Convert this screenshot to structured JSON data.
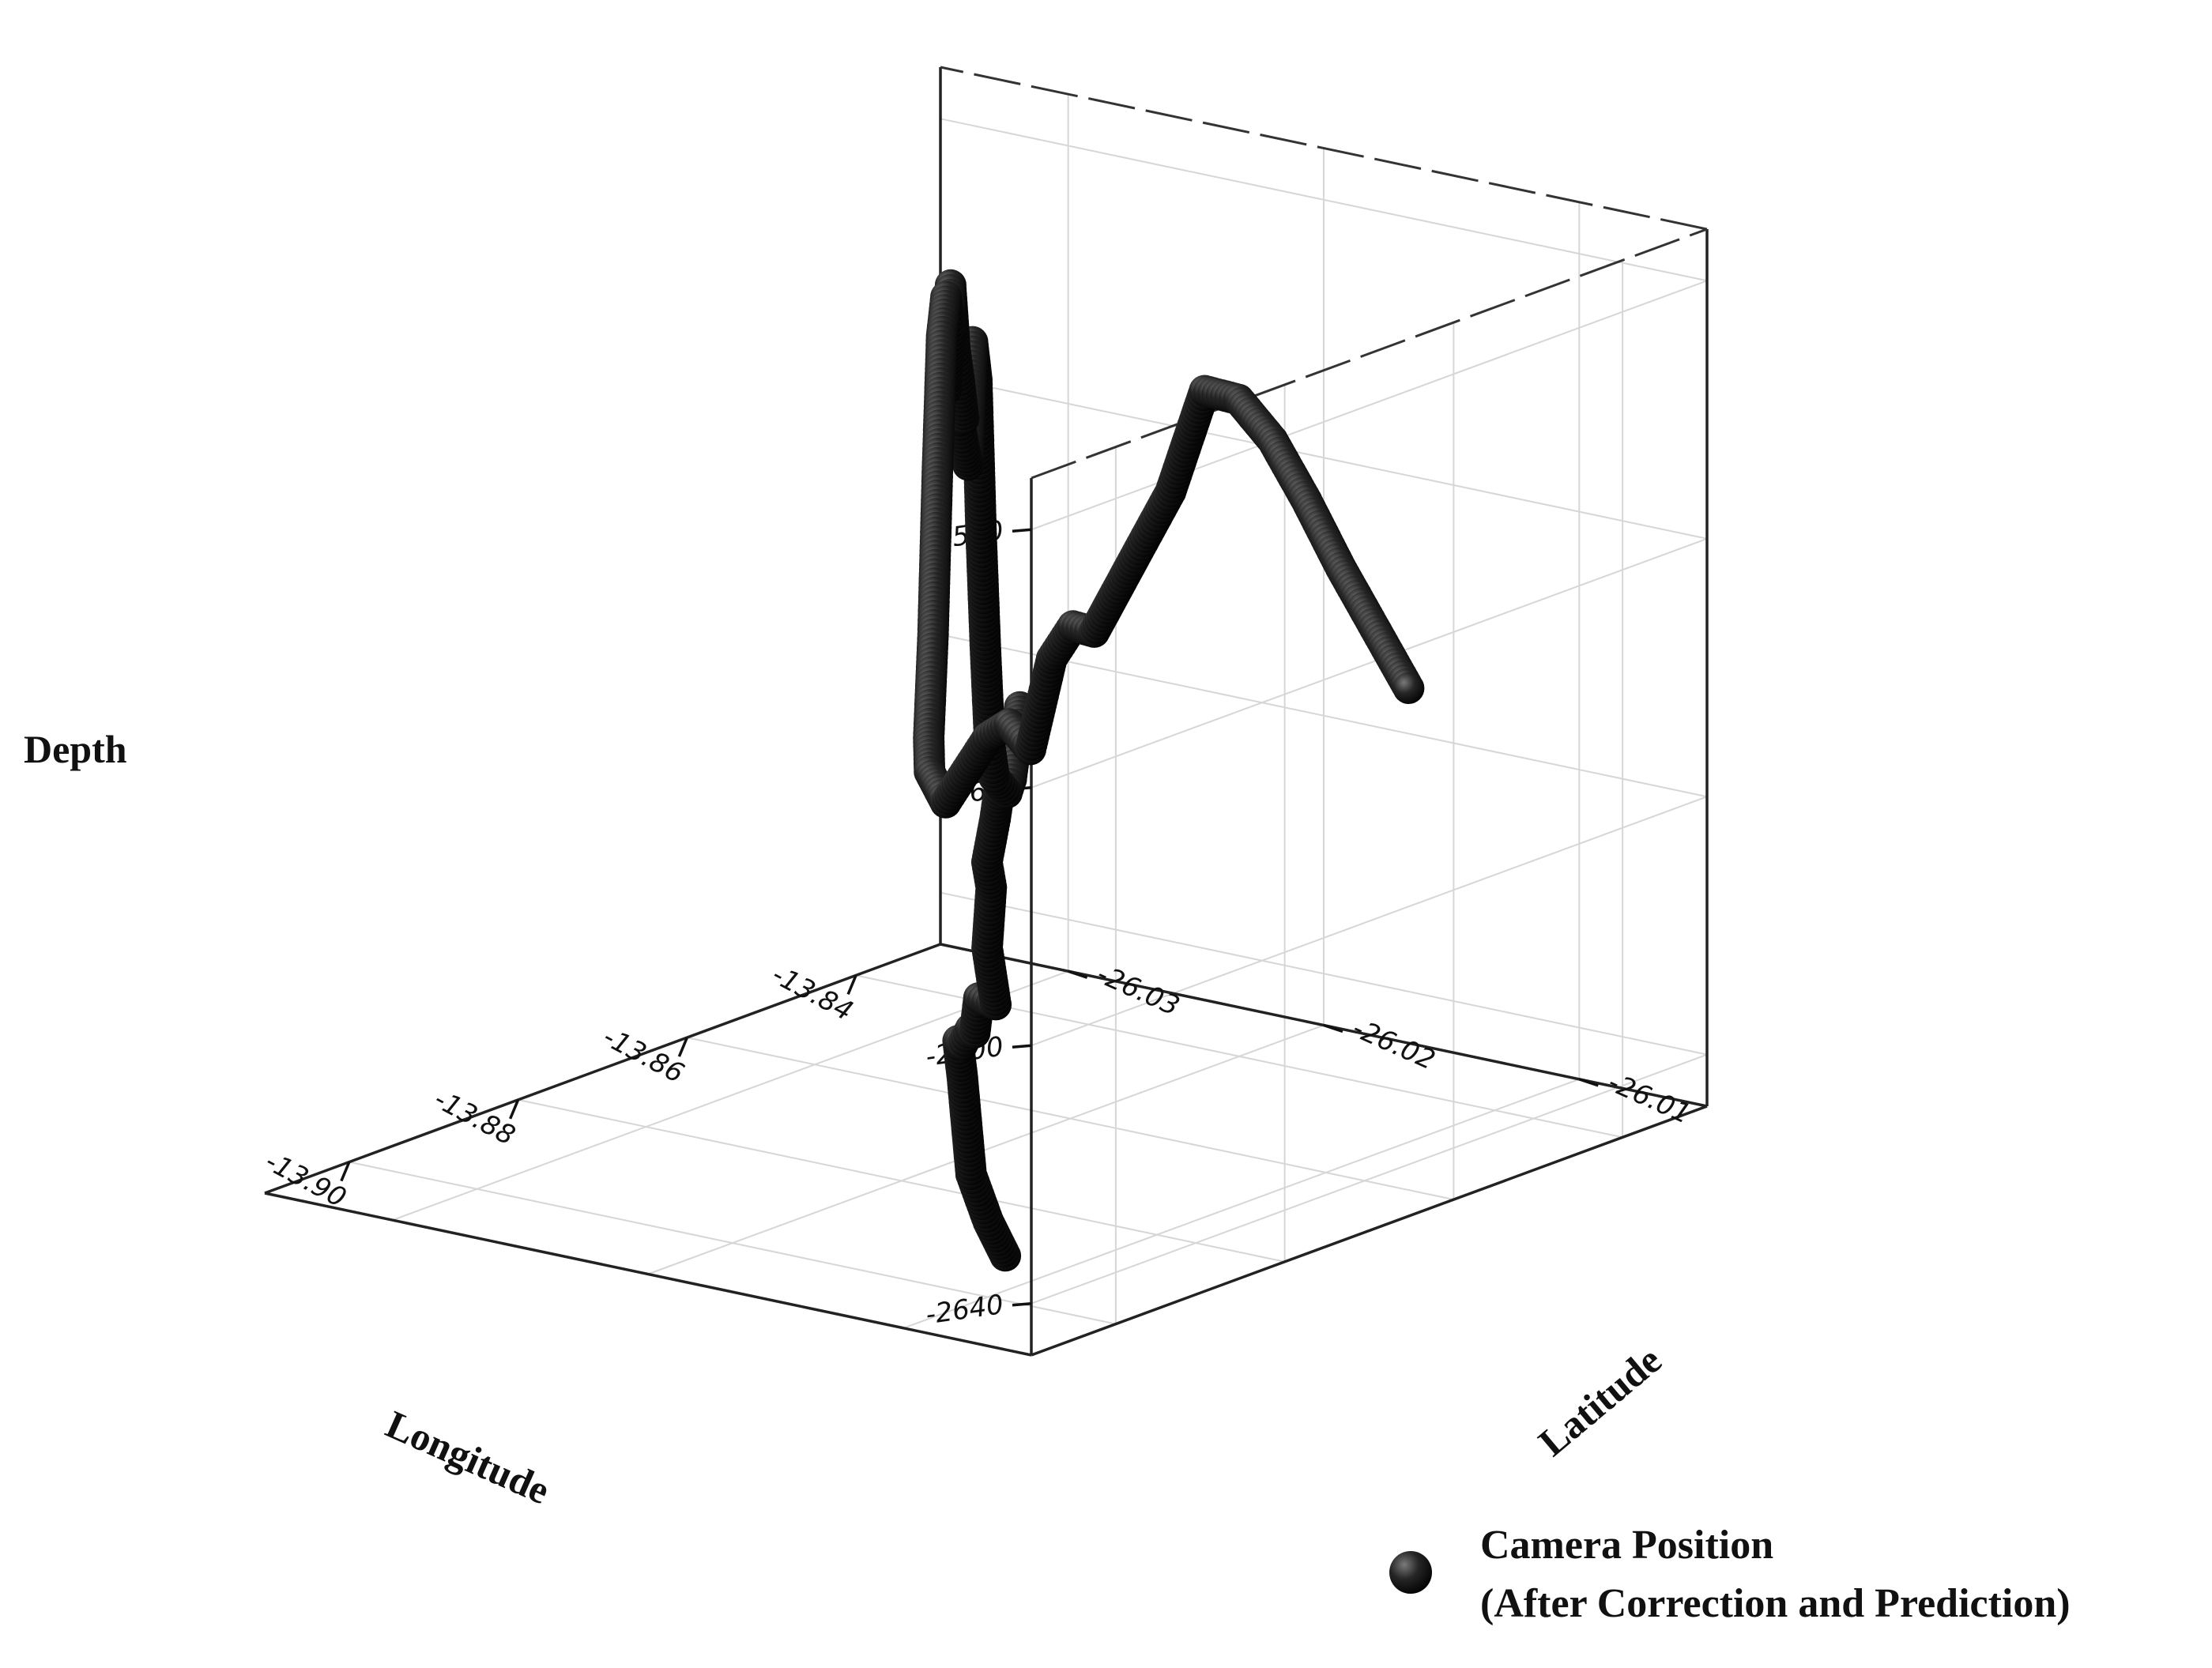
{
  "chart_data": {
    "type": "scatter",
    "projection": "3d",
    "axes": {
      "x": {
        "label": "Longitude",
        "range": [
          -13.91,
          -13.83
        ],
        "ticks": [
          -13.9,
          -13.88,
          -13.86,
          -13.84
        ],
        "tick_labels": [
          "-13.90",
          "-13.88",
          "-13.86",
          "-13.84"
        ]
      },
      "y": {
        "label": "Latitude",
        "range": [
          -26.035,
          -26.005
        ],
        "ticks": [
          -26.01,
          -26.02,
          -26.03
        ],
        "tick_labels": [
          "-26.01",
          "-26.02",
          "-26.03"
        ]
      },
      "z": {
        "label": "Depth",
        "range": [
          -2648,
          -2512
        ],
        "ticks": [
          -2520,
          -2560,
          -2600,
          -2640
        ],
        "tick_labels": [
          "-2520",
          "-2560",
          "-2600",
          "-2640"
        ]
      }
    },
    "grid": true,
    "legend": {
      "position": "bottom-right"
    },
    "series": [
      {
        "name": "Camera Position\n(After Correction and Prediction)",
        "legend_lines": [
          "Camera Position",
          "(After Correction and Prediction)"
        ],
        "color": "#1a1a1a",
        "marker": "sphere",
        "points": [
          [
            -13.904,
            -26.008,
            -2638
          ],
          [
            -13.903,
            -26.009,
            -2634
          ],
          [
            -13.902,
            -26.01,
            -2628
          ],
          [
            -13.9,
            -26.011,
            -2615
          ],
          [
            -13.899,
            -26.0115,
            -2610
          ],
          [
            -13.897,
            -26.012,
            -2612
          ],
          [
            -13.896,
            -26.012,
            -2610
          ],
          [
            -13.894,
            -26.0125,
            -2612
          ],
          [
            -13.892,
            -26.013,
            -2608
          ],
          [
            -13.89,
            -26.013,
            -2610
          ],
          [
            -13.888,
            -26.014,
            -2603
          ],
          [
            -13.886,
            -26.0145,
            -2595
          ],
          [
            -13.885,
            -26.015,
            -2592
          ],
          [
            -13.883,
            -26.0155,
            -2590
          ],
          [
            -13.881,
            -26.016,
            -2588
          ],
          [
            -13.879,
            -26.0165,
            -2585
          ],
          [
            -13.877,
            -26.017,
            -2583
          ],
          [
            -13.874,
            -26.0175,
            -2581
          ],
          [
            -13.872,
            -26.018,
            -2578
          ],
          [
            -13.87,
            -26.0185,
            -2579
          ],
          [
            -13.869,
            -26.019,
            -2579
          ],
          [
            -13.868,
            -26.0195,
            -2586
          ],
          [
            -13.867,
            -26.02,
            -2592
          ],
          [
            -13.866,
            -26.0205,
            -2595
          ],
          [
            -13.866,
            -26.021,
            -2593
          ],
          [
            -13.865,
            -26.0215,
            -2589
          ],
          [
            -13.864,
            -26.022,
            -2575
          ],
          [
            -13.863,
            -26.0225,
            -2558
          ],
          [
            -13.862,
            -26.023,
            -2535
          ],
          [
            -13.861,
            -26.0235,
            -2530
          ],
          [
            -13.86,
            -26.024,
            -2550
          ],
          [
            -13.859,
            -26.0245,
            -2548
          ],
          [
            -13.858,
            -26.025,
            -2545
          ],
          [
            -13.856,
            -26.0255,
            -2546
          ],
          [
            -13.855,
            -26.026,
            -2541
          ],
          [
            -13.854,
            -26.0265,
            -2537
          ],
          [
            -13.853,
            -26.027,
            -2528
          ],
          [
            -13.852,
            -26.0275,
            -2545
          ],
          [
            -13.85,
            -26.028,
            -2537
          ],
          [
            -13.849,
            -26.0285,
            -2533
          ],
          [
            -13.848,
            -26.029,
            -2540
          ],
          [
            -13.847,
            -26.0295,
            -2562
          ],
          [
            -13.846,
            -26.03,
            -2588
          ],
          [
            -13.845,
            -26.0305,
            -2605
          ],
          [
            -13.844,
            -26.0308,
            -2611
          ],
          [
            -13.843,
            -26.0305,
            -2616
          ],
          [
            -13.842,
            -26.03,
            -2611
          ],
          [
            -13.841,
            -26.0295,
            -2606
          ],
          [
            -13.84,
            -26.029,
            -2604
          ],
          [
            -13.839,
            -26.0285,
            -2608
          ],
          [
            -13.838,
            -26.028,
            -2594
          ],
          [
            -13.837,
            -26.0275,
            -2589
          ],
          [
            -13.836,
            -26.027,
            -2590
          ],
          [
            -13.835,
            -26.0265,
            -2584
          ],
          [
            -13.834,
            -26.026,
            -2578
          ],
          [
            -13.833,
            -26.025,
            -2568
          ],
          [
            -13.832,
            -26.024,
            -2552
          ],
          [
            -13.831,
            -26.023,
            -2553
          ],
          [
            -13.83,
            -26.022,
            -2559
          ],
          [
            -13.829,
            -26.021,
            -2568
          ],
          [
            -13.828,
            -26.02,
            -2578
          ],
          [
            -13.827,
            -26.019,
            -2587
          ],
          [
            -13.826,
            -26.018,
            -2596
          ]
        ]
      }
    ]
  }
}
